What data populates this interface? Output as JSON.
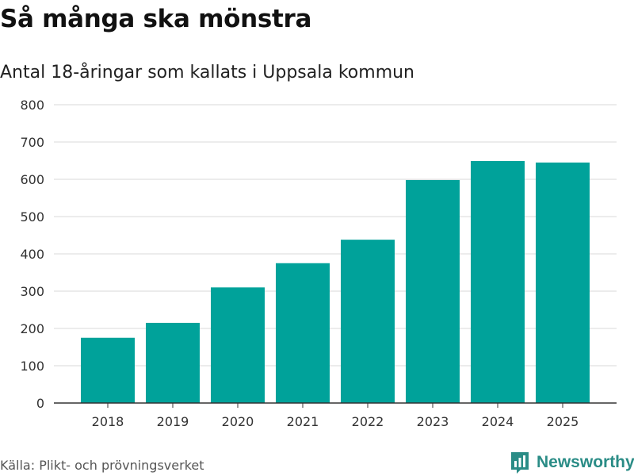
{
  "title": "Så många ska mönstra",
  "subtitle": "Antal 18-åringar som kallats i Uppsala kommun",
  "source": "Källa: Plikt- och prövningsverket",
  "brand": {
    "name": "Newsworthy",
    "color": "#2a8c86",
    "icon": "bar-chart-logo-icon"
  },
  "colors": {
    "bar": "#00a29a",
    "grid": "#d9d9d9",
    "axis": "#333333"
  },
  "chart_data": {
    "type": "bar",
    "title": "Så många ska mönstra",
    "subtitle": "Antal 18-åringar som kallats i Uppsala kommun",
    "xlabel": "",
    "ylabel": "",
    "categories": [
      "2018",
      "2019",
      "2020",
      "2021",
      "2022",
      "2023",
      "2024",
      "2025"
    ],
    "values": [
      175,
      215,
      310,
      375,
      438,
      598,
      649,
      645
    ],
    "ylim": [
      0,
      800
    ],
    "yticks": [
      0,
      100,
      200,
      300,
      400,
      500,
      600,
      700,
      800
    ],
    "grid": true,
    "legend": "none"
  }
}
